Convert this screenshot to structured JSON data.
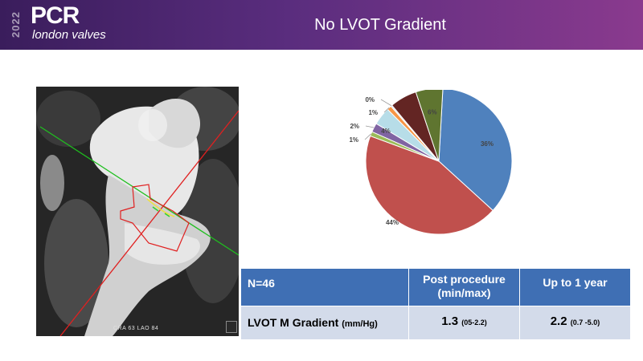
{
  "header": {
    "logo_year": "2022",
    "logo_main": "PCR",
    "logo_sub": "london valves",
    "title": "No LVOT Gradient"
  },
  "ct_image": {
    "label": "CRA 63 LAO 84"
  },
  "chart_data": {
    "type": "pie",
    "slices": [
      {
        "label": "36%",
        "value": 36,
        "color": "#4f81bd"
      },
      {
        "label": "44%",
        "value": 44,
        "color": "#c0504d"
      },
      {
        "label": "1%",
        "value": 1,
        "color": "#9bbb59"
      },
      {
        "label": "2%",
        "value": 2,
        "color": "#8064a2"
      },
      {
        "label": "4%",
        "value": 4,
        "color": "#b7dde8"
      },
      {
        "label": "1%",
        "value": 1,
        "color": "#f79646"
      },
      {
        "label": "0%",
        "value": 0.3,
        "color": "#c6d9f1"
      },
      {
        "label": "6%",
        "value": 6,
        "color": "#632523"
      },
      {
        "label": "6%",
        "value": 6,
        "color": "#5f7530"
      }
    ]
  },
  "table": {
    "n_label": "N=46",
    "col_post_line1": "Post procedure",
    "col_post_line2": "(min/max)",
    "col_year": "Up to 1 year",
    "row_label": "LVOT M Gradient",
    "row_unit": "(mm/Hg)",
    "post_value": "1.3",
    "post_range": "(05-2.2)",
    "year_value": "2.2",
    "year_range": "(0.7 -5.0)"
  }
}
